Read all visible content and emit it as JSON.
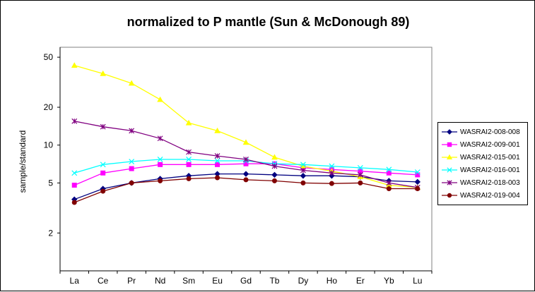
{
  "chart_data": {
    "type": "line",
    "title": "normalized to P mantle (Sun & McDonough 89)",
    "xlabel": "",
    "ylabel": "sample/standard",
    "yscale": "log",
    "ylim": [
      1,
      60
    ],
    "yticks": [
      2,
      5,
      10,
      20,
      50
    ],
    "grid": false,
    "legend_position": "right",
    "categories": [
      "La",
      "Ce",
      "Pr",
      "Nd",
      "Sm",
      "Eu",
      "Gd",
      "Tb",
      "Dy",
      "Ho",
      "Er",
      "Yb",
      "Lu"
    ],
    "series": [
      {
        "name": "WASRAI2-008-008",
        "color": "#000080",
        "marker": "diamond",
        "values": [
          3.7,
          4.5,
          5.0,
          5.4,
          5.7,
          5.9,
          5.9,
          5.8,
          5.7,
          5.7,
          5.6,
          5.2,
          5.1
        ]
      },
      {
        "name": "WASRAI2-009-001",
        "color": "#FF00FF",
        "marker": "square",
        "values": [
          4.8,
          6.0,
          6.5,
          7.0,
          7.0,
          7.0,
          7.1,
          7.1,
          6.6,
          6.4,
          6.2,
          6.0,
          5.8
        ]
      },
      {
        "name": "WASRAI2-015-001",
        "color": "#FFFF00",
        "marker": "triangle",
        "values": [
          43.0,
          37.0,
          31.0,
          23.0,
          15.0,
          13.0,
          10.5,
          8.0,
          6.8,
          6.2,
          5.6,
          4.8,
          4.6
        ]
      },
      {
        "name": "WASRAI2-016-001",
        "color": "#00FFFF",
        "marker": "x",
        "values": [
          6.0,
          7.0,
          7.4,
          7.7,
          7.7,
          7.5,
          7.5,
          7.1,
          7.0,
          6.8,
          6.6,
          6.4,
          6.1
        ]
      },
      {
        "name": "WASRAI2-018-003",
        "color": "#800080",
        "marker": "star",
        "values": [
          15.5,
          14.0,
          13.0,
          11.3,
          8.8,
          8.2,
          7.7,
          6.8,
          6.3,
          6.0,
          5.8,
          5.0,
          4.6
        ]
      },
      {
        "name": "WASRAI2-019-004",
        "color": "#800000",
        "marker": "circle",
        "values": [
          3.5,
          4.3,
          5.0,
          5.2,
          5.4,
          5.5,
          5.3,
          5.2,
          5.0,
          4.95,
          5.0,
          4.5,
          4.5
        ]
      }
    ]
  }
}
